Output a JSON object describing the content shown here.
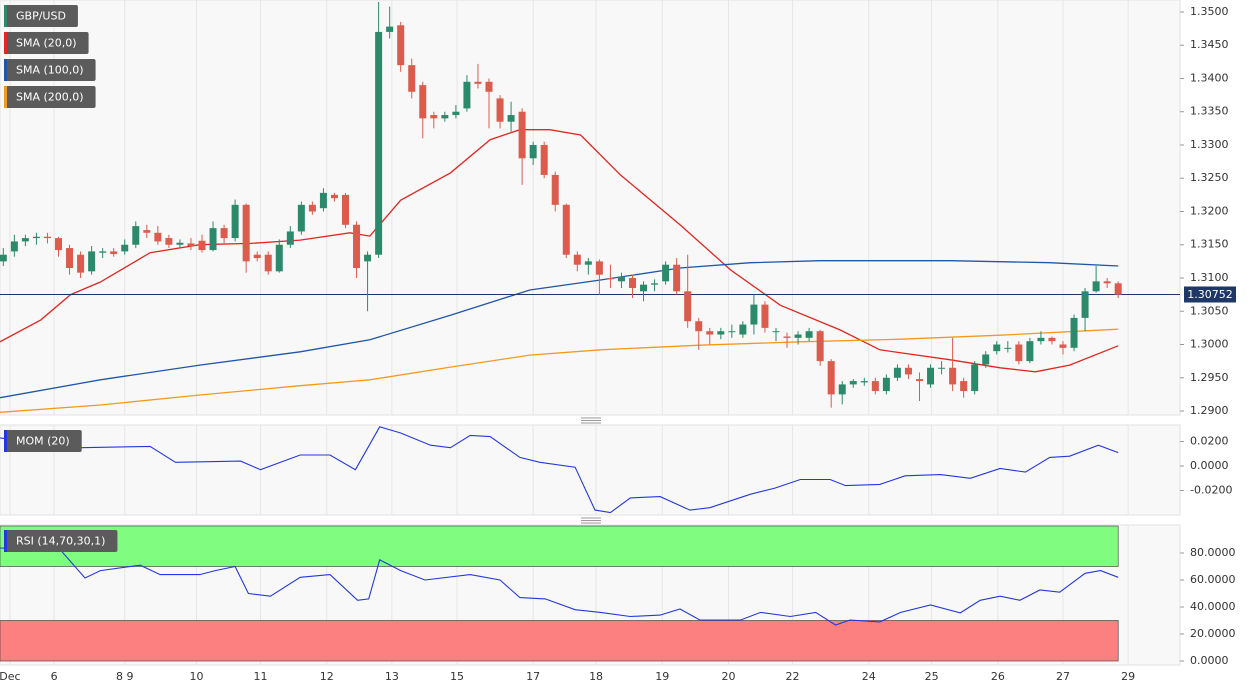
{
  "chart_data": [
    {
      "type": "candlestick",
      "name": "GBP/USD",
      "up_color": "#2c8a6c",
      "down_color": "#db5b4c",
      "open": [
        1.3125,
        1.314,
        1.3155,
        1.316,
        1.3162,
        1.316,
        1.3145,
        1.3135,
        1.311,
        1.3138,
        1.314,
        1.314,
        1.315,
        1.3172,
        1.3168,
        1.316,
        1.315,
        1.3152,
        1.3156,
        1.3142,
        1.3175,
        1.316,
        1.321,
        1.3135,
        1.3135,
        1.311,
        1.315,
        1.317,
        1.321,
        1.3205,
        1.3225,
        1.3225,
        1.318,
        1.3125,
        1.3135,
        1.347,
        1.348,
        1.342,
        1.339,
        1.3345,
        1.334,
        1.3345,
        1.3355,
        1.3395,
        1.3395,
        1.337,
        1.3335,
        1.335,
        1.328,
        1.33,
        1.3255,
        1.321,
        1.3135,
        1.312,
        1.3125,
        1.31,
        1.3095,
        1.31,
        1.308,
        1.309,
        1.3095,
        1.312,
        1.308,
        1.3035,
        1.302,
        1.3015,
        1.302,
        1.3015,
        1.303,
        1.306,
        1.302,
        1.3012,
        1.301,
        1.301,
        1.302,
        1.2975,
        1.2925,
        1.294,
        1.2943,
        1.2945,
        1.293,
        1.295,
        1.2965,
        1.2948,
        1.294,
        1.2965,
        1.2965,
        1.2945,
        1.293,
        1.297,
        1.299,
        1.2995,
        1.3,
        1.2975,
        1.3005,
        1.301,
        1.3,
        1.2995,
        1.304,
        1.308,
        1.3095,
        1.3092
      ],
      "high": [
        1.3145,
        1.3165,
        1.3165,
        1.3168,
        1.3168,
        1.3162,
        1.315,
        1.314,
        1.3148,
        1.3145,
        1.3145,
        1.3158,
        1.3185,
        1.318,
        1.3178,
        1.3165,
        1.3158,
        1.316,
        1.3165,
        1.3185,
        1.318,
        1.3218,
        1.3212,
        1.314,
        1.314,
        1.3158,
        1.3178,
        1.3215,
        1.3215,
        1.3235,
        1.3228,
        1.3228,
        1.3185,
        1.314,
        1.3515,
        1.3508,
        1.3485,
        1.343,
        1.3395,
        1.335,
        1.335,
        1.336,
        1.3405,
        1.3422,
        1.34,
        1.3375,
        1.3365,
        1.3355,
        1.3305,
        1.3305,
        1.326,
        1.3212,
        1.314,
        1.313,
        1.3128,
        1.312,
        1.3108,
        1.3105,
        1.3095,
        1.3098,
        1.3125,
        1.313,
        1.3135,
        1.304,
        1.3025,
        1.3025,
        1.303,
        1.3035,
        1.3075,
        1.3065,
        1.3025,
        1.3018,
        1.302,
        1.3025,
        1.3022,
        1.2978,
        1.2945,
        1.2948,
        1.295,
        1.295,
        1.2955,
        1.297,
        1.297,
        1.2958,
        1.297,
        1.2975,
        1.301,
        1.295,
        1.2975,
        1.299,
        1.3005,
        1.3005,
        1.3005,
        1.301,
        1.302,
        1.3012,
        1.3005,
        1.3045,
        1.3085,
        1.3118,
        1.31,
        1.3095
      ],
      "low": [
        1.3118,
        1.3132,
        1.3148,
        1.315,
        1.3152,
        1.3132,
        1.3105,
        1.31,
        1.3105,
        1.313,
        1.3132,
        1.3135,
        1.3145,
        1.316,
        1.315,
        1.3145,
        1.3145,
        1.3142,
        1.3138,
        1.314,
        1.3152,
        1.3155,
        1.3108,
        1.3125,
        1.3105,
        1.3108,
        1.3145,
        1.3165,
        1.3195,
        1.32,
        1.3215,
        1.3175,
        1.31,
        1.305,
        1.313,
        1.346,
        1.341,
        1.337,
        1.331,
        1.3325,
        1.3335,
        1.334,
        1.335,
        1.3385,
        1.3325,
        1.3325,
        1.332,
        1.324,
        1.327,
        1.325,
        1.32,
        1.313,
        1.311,
        1.3105,
        1.3075,
        1.3085,
        1.3085,
        1.307,
        1.3065,
        1.308,
        1.309,
        1.3075,
        1.3025,
        1.2992,
        1.3,
        1.3008,
        1.301,
        1.301,
        1.3015,
        1.3018,
        1.3005,
        1.2995,
        1.3,
        1.3005,
        1.2968,
        1.2905,
        1.291,
        1.2935,
        1.2938,
        1.2925,
        1.2925,
        1.2945,
        1.2948,
        1.2915,
        1.2935,
        1.2955,
        1.293,
        1.292,
        1.2925,
        1.2965,
        1.2985,
        1.2988,
        1.297,
        1.2972,
        1.3,
        1.3,
        1.2985,
        1.299,
        1.302,
        1.3078,
        1.3085,
        1.307
      ],
      "close": [
        1.3135,
        1.3155,
        1.316,
        1.3162,
        1.316,
        1.3142,
        1.3115,
        1.3108,
        1.314,
        1.314,
        1.3136,
        1.315,
        1.3178,
        1.3168,
        1.3155,
        1.315,
        1.3153,
        1.3148,
        1.3142,
        1.3175,
        1.316,
        1.321,
        1.3125,
        1.313,
        1.311,
        1.315,
        1.317,
        1.321,
        1.32,
        1.3228,
        1.322,
        1.318,
        1.3115,
        1.3135,
        1.347,
        1.3478,
        1.342,
        1.338,
        1.334,
        1.334,
        1.3345,
        1.335,
        1.3395,
        1.3392,
        1.338,
        1.3335,
        1.3345,
        1.328,
        1.33,
        1.3255,
        1.321,
        1.3135,
        1.312,
        1.3125,
        1.3105,
        1.3098,
        1.3102,
        1.3085,
        1.309,
        1.3092,
        1.312,
        1.308,
        1.3035,
        1.302,
        1.3015,
        1.302,
        1.302,
        1.303,
        1.306,
        1.3025,
        1.302,
        1.301,
        1.3015,
        1.302,
        1.2975,
        1.2925,
        1.294,
        1.2945,
        1.2945,
        1.293,
        1.295,
        1.2965,
        1.2955,
        1.2945,
        1.2965,
        1.2965,
        1.294,
        1.293,
        1.297,
        1.2985,
        1.3,
        1.2995,
        1.2975,
        1.3005,
        1.301,
        1.3005,
        1.2995,
        1.304,
        1.308,
        1.3095,
        1.3092,
        1.3075
      ],
      "overlays": [
        {
          "name": "SMA (20,0)",
          "color": "#e3261f",
          "x": [
            -0.3,
            3.4,
            6.1,
            8.8,
            13.3,
            17.8,
            22.4,
            26.9,
            31.4,
            33.2,
            36,
            40.5,
            44.1,
            46.8,
            49.5,
            52.3,
            55.9,
            61.3,
            65.9,
            70.4,
            75.8,
            79.4,
            85.8,
            90.3,
            93.5,
            96.6,
            101
          ],
          "values": [
            1.3004,
            1.3037,
            1.3075,
            1.3094,
            1.3138,
            1.315,
            1.3152,
            1.3157,
            1.3168,
            1.3163,
            1.3217,
            1.3258,
            1.3308,
            1.3323,
            1.3323,
            1.3315,
            1.3255,
            1.318,
            1.3112,
            1.3059,
            1.3022,
            1.2992,
            1.2977,
            1.2965,
            1.2959,
            1.2969,
            1.2998
          ]
        },
        {
          "name": "SMA (100,0)",
          "color": "#1f56a8",
          "x": [
            -0.3,
            8.8,
            17.8,
            26.9,
            33.2,
            40.5,
            47.7,
            54.1,
            61.3,
            67.7,
            74,
            85.8,
            94.8,
            101
          ],
          "values": [
            1.292,
            1.2947,
            1.2969,
            1.2989,
            1.3007,
            1.3044,
            1.3082,
            1.3097,
            1.3115,
            1.3123,
            1.3126,
            1.3126,
            1.3123,
            1.3118
          ]
        },
        {
          "name": "SMA (200,0)",
          "color": "#f39a1e",
          "x": [
            -0.3,
            8.8,
            17.8,
            26.9,
            33.2,
            40.5,
            47.7,
            54.1,
            63.1,
            72.2,
            81.3,
            90.3,
            101
          ],
          "values": [
            1.2898,
            1.2909,
            1.2924,
            1.2938,
            1.2947,
            1.2966,
            1.2984,
            1.2992,
            1.2999,
            1.3004,
            1.3008,
            1.3014,
            1.3023
          ]
        }
      ],
      "last_price": 1.30752,
      "last_price_color": "#1e3766",
      "xlim": [
        -0.3,
        106.6
      ],
      "xticks": [
        {
          "value": 0.6,
          "label": "Dec"
        },
        {
          "value": 4.6,
          "label": "6"
        },
        {
          "value": 11,
          "label": "8 9"
        },
        {
          "value": 17.5,
          "label": "10"
        },
        {
          "value": 23.3,
          "label": "11"
        },
        {
          "value": 29.3,
          "label": "12"
        },
        {
          "value": 35.2,
          "label": "13"
        },
        {
          "value": 41.1,
          "label": "15"
        },
        {
          "value": 48,
          "label": "17"
        },
        {
          "value": 53.7,
          "label": "18"
        },
        {
          "value": 59.7,
          "label": "19"
        },
        {
          "value": 65.7,
          "label": "20"
        },
        {
          "value": 71.5,
          "label": "22"
        },
        {
          "value": 78.4,
          "label": "24"
        },
        {
          "value": 84.1,
          "label": "25"
        },
        {
          "value": 90.1,
          "label": "26"
        },
        {
          "value": 96,
          "label": "27"
        },
        {
          "value": 101.9,
          "label": "29"
        }
      ],
      "ylim": [
        1.2894,
        1.3518
      ],
      "yticks": [
        {
          "value": 1.29,
          "label": "1.2900"
        },
        {
          "value": 1.295,
          "label": "1.2950"
        },
        {
          "value": 1.3,
          "label": "1.3000"
        },
        {
          "value": 1.305,
          "label": "1.3050"
        },
        {
          "value": 1.31,
          "label": "1.3100"
        },
        {
          "value": 1.315,
          "label": "1.3150"
        },
        {
          "value": 1.32,
          "label": "1.3200"
        },
        {
          "value": 1.325,
          "label": "1.3250"
        },
        {
          "value": 1.33,
          "label": "1.3300"
        },
        {
          "value": 1.335,
          "label": "1.3350"
        },
        {
          "value": 1.34,
          "label": "1.3400"
        },
        {
          "value": 1.345,
          "label": "1.3450"
        },
        {
          "value": 1.35,
          "label": "1.3500"
        }
      ]
    },
    {
      "type": "line",
      "series": [
        {
          "name": "MOM (20)",
          "color": "#2437e0",
          "x": [
            -0.3,
            7,
            13.3,
            15.6,
            21.5,
            23.3,
            26.9,
            29.6,
            31.9,
            34.1,
            36,
            38.7,
            40.5,
            42.3,
            44.1,
            46.8,
            48.6,
            51.8,
            53.6,
            55,
            56.8,
            59.5,
            62.2,
            64,
            67.7,
            69.9,
            72.2,
            74.9,
            76.3,
            79.4,
            81.7,
            84.9,
            87.6,
            90.3,
            92.6,
            94.8,
            96.6,
            99.2,
            101
          ],
          "values": [
            0.023,
            0.015,
            0.016,
            0.003,
            0.004,
            -0.003,
            0.009,
            0.009,
            -0.003,
            0.032,
            0.027,
            0.017,
            0.015,
            0.025,
            0.024,
            0.007,
            0.003,
            -0.001,
            -0.036,
            -0.038,
            -0.026,
            -0.025,
            -0.036,
            -0.034,
            -0.023,
            -0.018,
            -0.011,
            -0.011,
            -0.016,
            -0.015,
            -0.008,
            -0.007,
            -0.01,
            -0.002,
            -0.005,
            0.007,
            0.008,
            0.017,
            0.011
          ]
        }
      ],
      "ylim": [
        -0.04,
        0.0335
      ],
      "yticks": [
        {
          "value": 0.02,
          "label": "0.0200"
        },
        {
          "value": 0,
          "label": "0.0000"
        },
        {
          "value": -0.02,
          "label": "-0.0200"
        }
      ]
    },
    {
      "type": "line",
      "series": [
        {
          "name": "RSI (14,70,30,1)",
          "color": "#2437e0",
          "x": [
            -0.3,
            5.2,
            7.4,
            8.8,
            12.4,
            14.2,
            17.8,
            19.2,
            21,
            22.2,
            24.2,
            26.9,
            29.6,
            32.1,
            33.1,
            34.1,
            36,
            38.2,
            42.3,
            45,
            46.8,
            49.1,
            51.8,
            54.1,
            56.8,
            59.5,
            61.3,
            63.1,
            66.8,
            68.6,
            71.3,
            73.6,
            75.4,
            76.7,
            79.4,
            81.3,
            84,
            86.7,
            88.5,
            90.3,
            92.1,
            93.9,
            95.7,
            98,
            99.4,
            101
          ],
          "values": [
            83.7,
            82,
            61.5,
            67,
            71,
            64,
            64,
            67,
            70,
            50,
            48,
            62,
            64,
            45,
            46,
            75,
            67,
            60,
            64,
            60,
            47,
            46,
            38,
            36,
            33,
            34,
            38.5,
            30.4,
            30.4,
            36,
            33,
            36,
            26.7,
            30.4,
            29,
            36,
            41.5,
            35.6,
            45,
            48,
            45,
            52.6,
            51,
            65,
            67,
            62
          ]
        }
      ],
      "bands": [
        {
          "from": 70,
          "to": 100,
          "color": "#80fd80"
        },
        {
          "from": 0,
          "to": 30,
          "color": "#fd8080"
        }
      ],
      "ylim": [
        -2.96,
        100.74
      ],
      "yticks": [
        {
          "value": 0,
          "label": "0.0000"
        },
        {
          "value": 20,
          "label": "20.0000"
        },
        {
          "value": 40,
          "label": "40.0000"
        },
        {
          "value": 60,
          "label": "60.0000"
        },
        {
          "value": 80,
          "label": "80.0000"
        }
      ]
    }
  ]
}
